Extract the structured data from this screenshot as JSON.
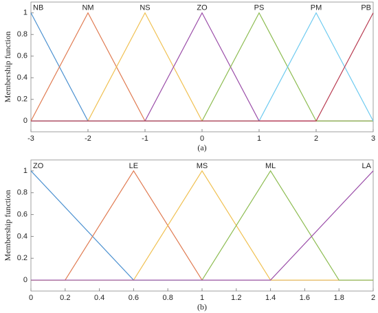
{
  "chart_data": [
    {
      "type": "line",
      "caption": "(a)",
      "y_label": "Membership function",
      "xlim": [
        -3,
        3
      ],
      "xticks": [
        -3,
        -2,
        -1,
        0,
        1,
        2,
        3
      ],
      "ylim": [
        -0.1,
        1.1
      ],
      "yticks": [
        0,
        0.2,
        0.4,
        0.6,
        0.8,
        1
      ],
      "series": [
        {
          "name": "NB",
          "color": "#4a90d0",
          "x": [
            -3,
            -2,
            3
          ],
          "values": [
            1,
            0,
            0
          ]
        },
        {
          "name": "NM",
          "color": "#e07a50",
          "x": [
            -3,
            -2,
            -1,
            3
          ],
          "values": [
            0,
            1,
            0,
            0
          ]
        },
        {
          "name": "NS",
          "color": "#f0c050",
          "x": [
            -3,
            -2,
            -1,
            0,
            3
          ],
          "values": [
            0,
            0,
            1,
            0,
            0
          ]
        },
        {
          "name": "ZO",
          "color": "#9a4ca8",
          "x": [
            -3,
            -1,
            0,
            1,
            3
          ],
          "values": [
            0,
            0,
            1,
            0,
            0
          ]
        },
        {
          "name": "PS",
          "color": "#8cbc50",
          "x": [
            -3,
            0,
            1,
            2,
            3
          ],
          "values": [
            0,
            0,
            1,
            0,
            0
          ]
        },
        {
          "name": "PM",
          "color": "#6ccaf0",
          "x": [
            -3,
            1,
            2,
            3
          ],
          "values": [
            0,
            0,
            1,
            0
          ]
        },
        {
          "name": "PB",
          "color": "#b83a50",
          "x": [
            -3,
            2,
            3
          ],
          "values": [
            0,
            0,
            1
          ]
        }
      ]
    },
    {
      "type": "line",
      "caption": "(b)",
      "y_label": "Membership function",
      "xlim": [
        0,
        2
      ],
      "xticks": [
        0,
        0.2,
        0.4,
        0.6,
        0.8,
        1,
        1.2,
        1.4,
        1.6,
        1.8,
        2
      ],
      "ylim": [
        -0.1,
        1.1
      ],
      "yticks": [
        0,
        0.2,
        0.4,
        0.6,
        0.8,
        1
      ],
      "series": [
        {
          "name": "ZO",
          "color": "#4a90d0",
          "x": [
            0,
            0.6,
            2
          ],
          "values": [
            1,
            0,
            0
          ]
        },
        {
          "name": "LE",
          "color": "#e07a50",
          "x": [
            0,
            0.2,
            0.6,
            1,
            2
          ],
          "values": [
            0,
            0,
            1,
            0,
            0
          ]
        },
        {
          "name": "MS",
          "color": "#f0c050",
          "x": [
            0,
            0.6,
            1,
            1.4,
            2
          ],
          "values": [
            0,
            0,
            1,
            0,
            0
          ]
        },
        {
          "name": "ML",
          "color": "#8cbc50",
          "x": [
            0,
            1,
            1.4,
            1.8,
            2
          ],
          "values": [
            0,
            0,
            1,
            0,
            0
          ]
        },
        {
          "name": "LA",
          "color": "#9a4ca8",
          "x": [
            0,
            1.4,
            2
          ],
          "values": [
            0,
            0,
            1
          ]
        }
      ]
    }
  ]
}
